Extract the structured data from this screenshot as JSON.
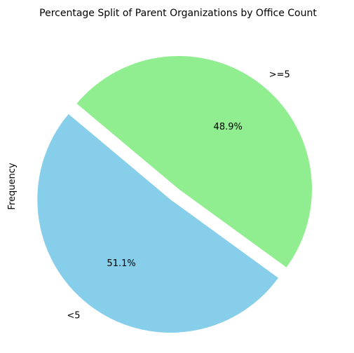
{
  "chart_data": {
    "type": "pie",
    "title": "Percentage Split of Parent Organizations by Office Count",
    "ylabel": "Frequency",
    "startangle_deg": 140,
    "explode": [
      0.1,
      0.0
    ],
    "slices": [
      {
        "label": "<5",
        "value": 51.1,
        "pct_label": "51.1%",
        "color": "#87CEEB"
      },
      {
        "label": ">=5",
        "value": 48.9,
        "pct_label": "48.9%",
        "color": "#90EE90"
      }
    ]
  }
}
